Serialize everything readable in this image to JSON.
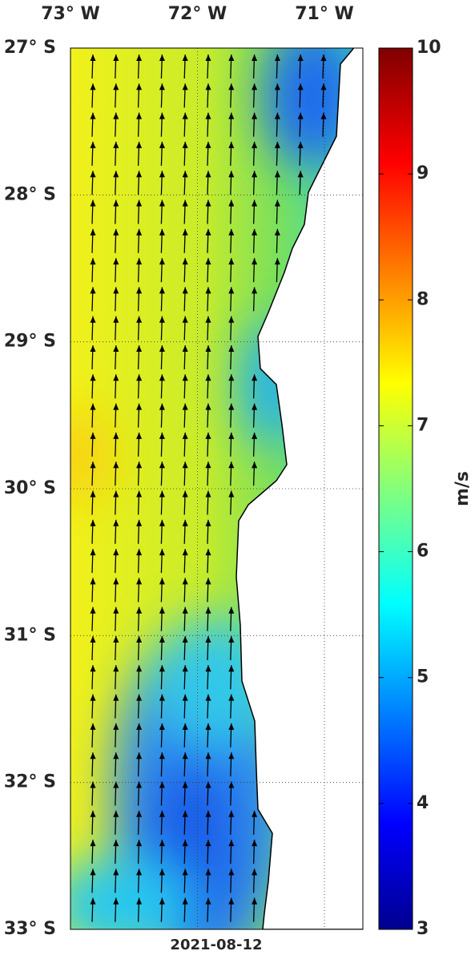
{
  "map": {
    "lon_labels": [
      "73° W",
      "72° W",
      "71° W"
    ],
    "lat_labels": [
      "27° S",
      "28° S",
      "29° S",
      "30° S",
      "31° S",
      "32° S",
      "33° S"
    ],
    "date": "2021-08-12"
  },
  "colorbar": {
    "label": "m/s",
    "ticks": [
      3,
      4,
      5,
      6,
      7,
      8,
      9,
      10
    ]
  }
}
